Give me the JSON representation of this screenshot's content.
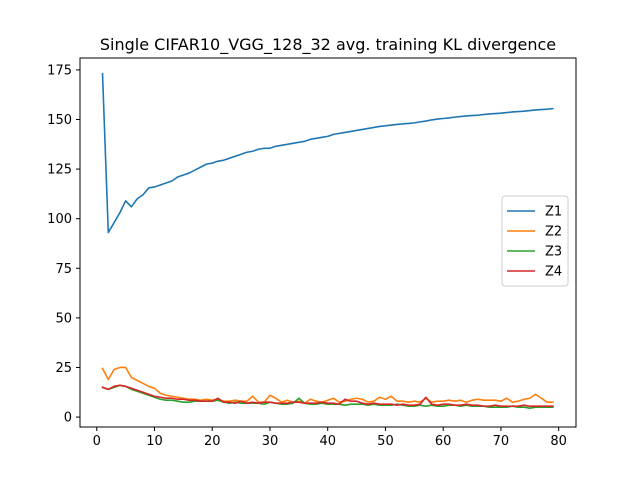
{
  "chart_data": {
    "type": "line",
    "title": "Single CIFAR10_VGG_128_32 avg. training KL divergence",
    "xlabel": "",
    "ylabel": "",
    "xlim": [
      -2.9,
      83
    ],
    "ylim": [
      -5,
      181
    ],
    "xticks": [
      0,
      10,
      20,
      30,
      40,
      50,
      60,
      70,
      80
    ],
    "yticks": [
      0,
      25,
      50,
      75,
      100,
      125,
      150,
      175
    ],
    "grid": false,
    "legend_position": "center-right",
    "x": [
      1,
      2,
      3,
      4,
      5,
      6,
      7,
      8,
      9,
      10,
      11,
      12,
      13,
      14,
      15,
      16,
      17,
      18,
      19,
      20,
      21,
      22,
      23,
      24,
      25,
      26,
      27,
      28,
      29,
      30,
      31,
      32,
      33,
      34,
      35,
      36,
      37,
      38,
      39,
      40,
      41,
      42,
      43,
      44,
      45,
      46,
      47,
      48,
      49,
      50,
      51,
      52,
      53,
      54,
      55,
      56,
      57,
      58,
      59,
      60,
      61,
      62,
      63,
      64,
      65,
      66,
      67,
      68,
      69,
      70,
      71,
      72,
      73,
      74,
      75,
      76,
      77,
      78,
      79
    ],
    "series": [
      {
        "name": "Z1",
        "color": "#1f77b4",
        "values": [
          173,
          93,
          98,
          103,
          109,
          106,
          110,
          112,
          115.5,
          116,
          117,
          118,
          119,
          121,
          122,
          123,
          124.5,
          126,
          127.5,
          128,
          129,
          129.5,
          130.5,
          131.5,
          132.5,
          133.5,
          134,
          135,
          135.5,
          135.5,
          136.5,
          137,
          137.5,
          138,
          138.5,
          139,
          140,
          140.5,
          141,
          141.5,
          142.5,
          143,
          143.5,
          144,
          144.5,
          145,
          145.5,
          146,
          146.5,
          146.8,
          147.2,
          147.5,
          147.8,
          148,
          148.3,
          148.8,
          149.2,
          149.8,
          150.2,
          150.5,
          150.8,
          151.2,
          151.5,
          151.8,
          152,
          152.2,
          152.5,
          152.8,
          153,
          153.2,
          153.5,
          153.8,
          154,
          154.2,
          154.5,
          154.8,
          155,
          155.2,
          155.5
        ]
      },
      {
        "name": "Z2",
        "color": "#ff7f0e",
        "values": [
          24.5,
          19,
          24,
          25,
          25,
          20,
          18.5,
          17,
          15.5,
          14.5,
          12,
          11,
          10.5,
          10,
          9.5,
          9,
          9,
          8.5,
          9,
          8.5,
          9,
          8,
          8,
          8.5,
          8,
          8,
          10.5,
          7.5,
          7.5,
          11,
          9.5,
          7.5,
          8.5,
          7.5,
          8,
          7,
          9,
          8,
          7.5,
          8.5,
          9.5,
          7.5,
          8,
          9,
          9.5,
          9,
          7.5,
          8,
          10,
          9,
          10.5,
          8,
          8,
          7.5,
          8,
          7.5,
          9.5,
          7.5,
          8,
          8,
          8.5,
          8,
          8.5,
          7.5,
          8.5,
          9,
          8.5,
          8.5,
          8.5,
          8,
          9.5,
          7.5,
          8,
          9,
          9.5,
          11.5,
          9.5,
          7.5,
          7.5
        ]
      },
      {
        "name": "Z3",
        "color": "#2ca02c",
        "values": [
          15,
          14,
          15,
          16,
          15.5,
          14,
          13,
          12,
          11,
          10,
          9,
          8.5,
          8.5,
          8,
          7.5,
          7.5,
          8,
          8,
          8,
          8,
          8.5,
          7.5,
          7,
          7.5,
          7,
          7,
          7,
          7,
          6.5,
          7.5,
          7,
          6.5,
          6.5,
          7,
          9.5,
          7,
          6.5,
          6.5,
          7,
          6.5,
          6.5,
          6.5,
          6,
          6.5,
          6.5,
          6.5,
          6,
          6.5,
          6,
          6,
          6,
          6.5,
          6,
          5.5,
          5.5,
          6,
          5.5,
          6,
          5.5,
          5.5,
          6,
          6,
          5.5,
          6,
          5.5,
          5.5,
          5.5,
          5,
          5,
          5,
          5,
          5.5,
          5,
          5,
          4.5,
          5,
          5,
          5,
          5
        ]
      },
      {
        "name": "Z4",
        "color": "#d62728",
        "values": [
          15,
          14,
          15.5,
          16,
          15.5,
          14.5,
          13.5,
          12.5,
          11.5,
          10.5,
          10,
          9.5,
          9.5,
          9,
          9,
          8.5,
          8.5,
          8,
          8,
          8,
          9.5,
          7.5,
          7.5,
          7,
          8,
          7,
          7.5,
          7,
          7.5,
          7.5,
          7,
          7,
          7,
          7.5,
          7.5,
          7,
          7,
          7,
          7.5,
          7,
          7,
          6.5,
          9,
          8,
          8,
          7,
          6.5,
          7,
          6.5,
          6.5,
          6.5,
          6,
          6.5,
          6,
          6,
          6.5,
          10,
          6.5,
          6,
          6.5,
          6.5,
          6,
          6,
          6.5,
          6,
          6,
          5.5,
          5.5,
          6,
          5.5,
          5.5,
          5.5,
          5.5,
          6,
          5.5,
          5.5,
          5.5,
          5.5,
          5.5
        ]
      }
    ]
  }
}
